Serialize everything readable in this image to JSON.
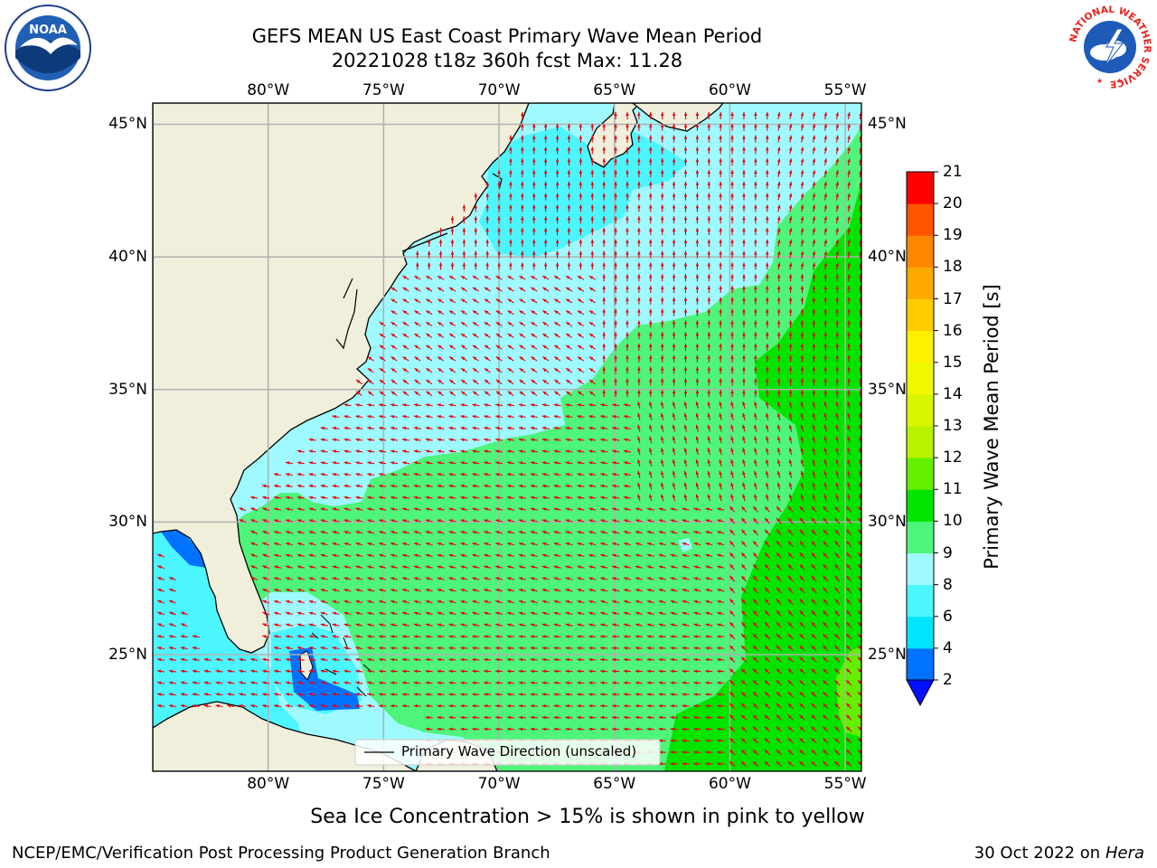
{
  "header": {
    "title_line1": "GEFS MEAN US East Coast Primary Wave Mean Period",
    "title_line2": "20221028 t18z 360h fcst   Max: 11.28"
  },
  "logos": {
    "left": {
      "name": "NOAA",
      "ring_text": "NATIONAL OCEANIC AND ATMOSPHERIC ADMINISTRATION · U.S. DEPARTMENT OF COMMERCE",
      "colors": {
        "ring": "#ffffff",
        "sky": "#1f5fb4",
        "sea": "#0c3a7a",
        "bird": "#ffffff"
      }
    },
    "right": {
      "name": "NATIONAL WEATHER SERVICE",
      "colors": {
        "ring_text": "#e8231e",
        "inner": "#1e5bb8",
        "cloud": "#ffffff"
      }
    }
  },
  "map": {
    "lon_range": [
      -85,
      -54.3
    ],
    "lat_range": [
      20.6,
      45.8
    ],
    "lon_ticks": [
      "80°W",
      "75°W",
      "70°W",
      "65°W",
      "60°W",
      "55°W"
    ],
    "lon_tick_values": [
      -80,
      -75,
      -70,
      -65,
      -60,
      -55
    ],
    "lat_ticks": [
      "45°N",
      "40°N",
      "35°N",
      "30°N",
      "25°N"
    ],
    "lat_tick_values": [
      45,
      40,
      35,
      30,
      25
    ],
    "colors": {
      "land": "#efefdc",
      "grid": "#b0b0b0",
      "coast": "#000000",
      "arrow": "#e8000b"
    },
    "legend_label": "Primary Wave Direction (unscaled)"
  },
  "colorbar": {
    "label": "Primary Wave Mean Period [s]",
    "ticks": [
      "2",
      "4",
      "6",
      "8",
      "9",
      "10",
      "11",
      "12",
      "13",
      "14",
      "15",
      "16",
      "17",
      "18",
      "19",
      "20",
      "21"
    ],
    "colors": [
      "#0072ff",
      "#00e5ff",
      "#4cf6ff",
      "#9ffaff",
      "#4ef57a",
      "#00e400",
      "#64ef00",
      "#b8f200",
      "#d8f500",
      "#f0f800",
      "#fff000",
      "#ffcc00",
      "#ffaa00",
      "#ff8800",
      "#ff5500",
      "#ff2a00",
      "#ff0000"
    ],
    "under_color": "#0010ff"
  },
  "notes": {
    "sea_ice": "Sea Ice Concentration > 15% is shown in pink to yellow",
    "footer_left": "NCEP/EMC/Verification Post Processing Product Generation Branch",
    "footer_date": "30 Oct 2022 on ",
    "footer_host": "Hera"
  }
}
